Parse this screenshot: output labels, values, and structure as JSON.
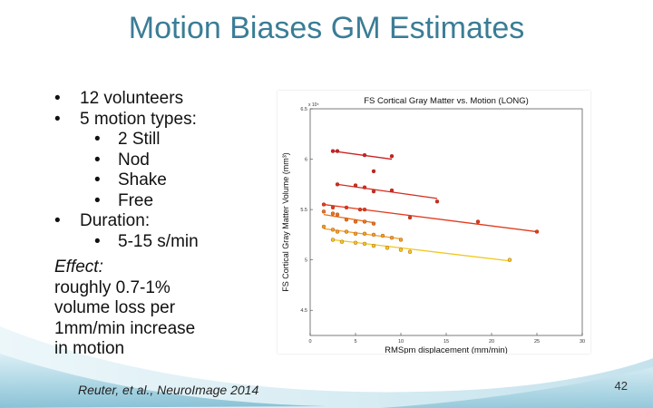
{
  "slide": {
    "title": "Motion Biases GM Estimates",
    "bullets": [
      {
        "level": 1,
        "text": "12 volunteers"
      },
      {
        "level": 1,
        "text": "5 motion types:"
      },
      {
        "level": 2,
        "text": "2 Still"
      },
      {
        "level": 2,
        "text": "Nod"
      },
      {
        "level": 2,
        "text": "Shake"
      },
      {
        "level": 2,
        "text": "Free"
      },
      {
        "level": 1,
        "text": "Duration:"
      },
      {
        "level": 2,
        "text": "5-15 s/min"
      }
    ],
    "bullet_char": "•",
    "effect_label": "Effect:",
    "effect_lines": [
      "roughly 0.7-1%",
      "volume loss per",
      "1mm/min increase",
      "in motion"
    ],
    "citation": "Reuter, et al., NeuroImage 2014",
    "page_number": "42",
    "colors": {
      "title": "#3a7d96",
      "wave": "#9ccfe0"
    }
  },
  "chart_data": {
    "type": "scatter",
    "title": "FS Cortical Gray Matter vs. Motion (LONG)",
    "xlabel": "RMSpm displacement (mm/min)",
    "ylabel": "FS Cortical Gray Matter Volume (mm³)",
    "y_multiplier_label": "x 10⁵",
    "xlim": [
      0,
      30
    ],
    "ylim": [
      4.25,
      6.5
    ],
    "xticks": [
      "0",
      "5",
      "10",
      "15",
      "20",
      "25",
      "30"
    ],
    "yticks": [
      "4.5",
      "5",
      "5.5",
      "6",
      "6.5"
    ],
    "series": [
      {
        "color": "#cc2020",
        "points": [
          [
            2.5,
            6.08
          ],
          [
            3.0,
            6.08
          ],
          [
            6.0,
            6.04
          ],
          [
            7.0,
            5.88
          ],
          [
            9.0,
            6.03
          ]
        ],
        "fit": [
          [
            2.5,
            6.08
          ],
          [
            9.0,
            6.0
          ]
        ]
      },
      {
        "color": "#d52b1e",
        "points": [
          [
            3.0,
            5.75
          ],
          [
            5.0,
            5.74
          ],
          [
            6.0,
            5.72
          ],
          [
            7.0,
            5.68
          ],
          [
            9.0,
            5.69
          ],
          [
            14.0,
            5.58
          ]
        ],
        "fit": [
          [
            3.0,
            5.75
          ],
          [
            14.0,
            5.61
          ]
        ]
      },
      {
        "color": "#e03a1c",
        "points": [
          [
            1.5,
            5.55
          ],
          [
            2.5,
            5.52
          ],
          [
            4.0,
            5.52
          ],
          [
            5.5,
            5.5
          ],
          [
            6.0,
            5.5
          ],
          [
            11.0,
            5.42
          ],
          [
            18.5,
            5.38
          ],
          [
            25.0,
            5.28
          ]
        ],
        "fit": [
          [
            1.5,
            5.55
          ],
          [
            25.0,
            5.28
          ]
        ]
      },
      {
        "color": "#e8741c",
        "points": [
          [
            1.5,
            5.48
          ],
          [
            2.5,
            5.46
          ],
          [
            3.0,
            5.45
          ],
          [
            4.0,
            5.4
          ],
          [
            5.0,
            5.38
          ],
          [
            6.0,
            5.38
          ],
          [
            7.0,
            5.36
          ]
        ],
        "fit": [
          [
            1.5,
            5.45
          ],
          [
            7.0,
            5.37
          ]
        ]
      },
      {
        "color": "#f0a020",
        "points": [
          [
            1.5,
            5.33
          ],
          [
            2.5,
            5.3
          ],
          [
            3.0,
            5.28
          ],
          [
            4.0,
            5.28
          ],
          [
            5.0,
            5.26
          ],
          [
            6.0,
            5.26
          ],
          [
            7.0,
            5.25
          ],
          [
            8.0,
            5.24
          ],
          [
            9.0,
            5.22
          ],
          [
            10.0,
            5.2
          ]
        ],
        "fit": [
          [
            1.5,
            5.31
          ],
          [
            10.0,
            5.21
          ]
        ]
      },
      {
        "color": "#f0c820",
        "points": [
          [
            2.5,
            5.2
          ],
          [
            3.5,
            5.18
          ],
          [
            5.0,
            5.17
          ],
          [
            6.0,
            5.16
          ],
          [
            7.0,
            5.14
          ],
          [
            8.5,
            5.12
          ],
          [
            10.0,
            5.1
          ],
          [
            11.0,
            5.08
          ],
          [
            22.0,
            5.0
          ]
        ],
        "fit": [
          [
            2.5,
            5.2
          ],
          [
            22.0,
            4.99
          ]
        ]
      }
    ]
  }
}
